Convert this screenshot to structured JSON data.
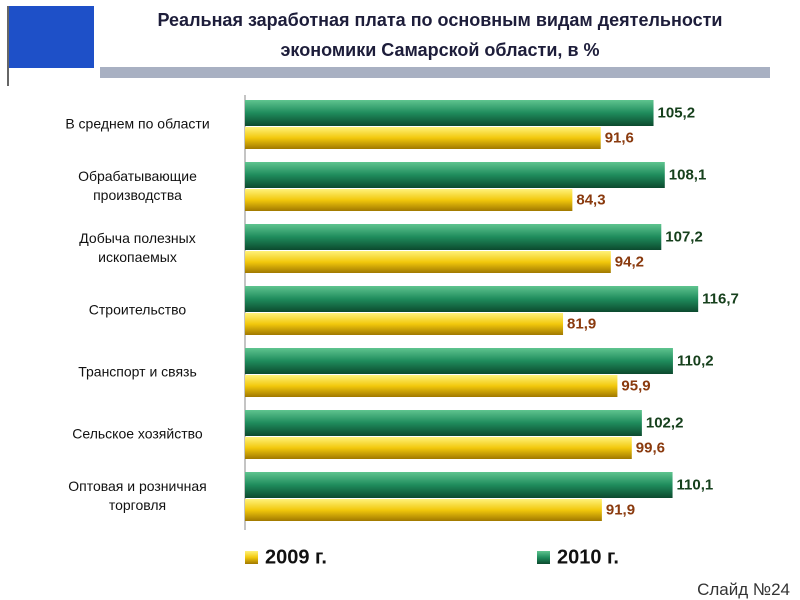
{
  "chart_data": {
    "type": "bar",
    "orientation": "horizontal",
    "title": [
      "Реальная заработная плата по основным видам деятельности",
      "экономики Самарской области, в %"
    ],
    "categories": [
      "В среднем по области",
      "Обрабатывающие\nпроизводства",
      "Добыча полезных\nископаемых",
      "Строительство",
      "Транспорт и связь",
      "Сельское хозяйство",
      "Оптовая и розничная\nторговля"
    ],
    "series": [
      {
        "name": "2009 г.",
        "color": "#f2c80c",
        "values": [
          91.6,
          84.3,
          94.2,
          81.9,
          95.9,
          99.6,
          91.9
        ],
        "value_labels": [
          "91,6",
          "84,3",
          "94,2",
          "81,9",
          "95,9",
          "99,6",
          "91,9"
        ]
      },
      {
        "name": "2010 г.",
        "color": "#1f8c5c",
        "values": [
          105.2,
          108.1,
          107.2,
          116.7,
          110.2,
          102.2,
          110.1
        ],
        "value_labels": [
          "105,2",
          "108,1",
          "107,2",
          "116,7",
          "110,2",
          "102,2",
          "110,1"
        ]
      }
    ],
    "xlim": [
      0,
      120
    ],
    "footer": "Слайд №24"
  }
}
